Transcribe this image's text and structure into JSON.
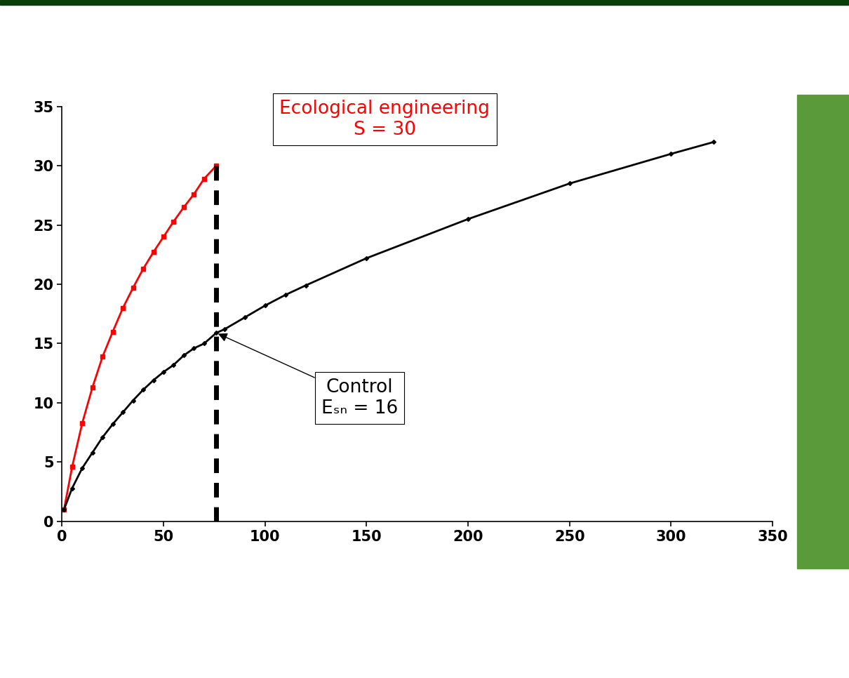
{
  "chart_data": {
    "type": "line",
    "series": [
      {
        "name": "Ecological engineering",
        "annotation": "S = 30",
        "color": "#ff0000",
        "marker": "square",
        "line_style": "solid",
        "x": [
          1,
          5,
          10,
          15,
          20,
          25,
          30,
          35,
          40,
          45,
          50,
          55,
          60,
          65,
          70,
          76
        ],
        "values": [
          1,
          4.6,
          8.3,
          11.3,
          13.9,
          16,
          18,
          19.7,
          21.3,
          22.7,
          24,
          25.3,
          26.5,
          27.6,
          28.9,
          30
        ]
      },
      {
        "name": "Control",
        "annotation": "Eₛₙ = 16",
        "color": "#000000",
        "marker": "diamond",
        "line_style": "solid",
        "x": [
          1,
          5,
          10,
          15,
          20,
          25,
          30,
          35,
          40,
          45,
          50,
          55,
          60,
          65,
          70,
          76,
          80,
          90,
          100,
          110,
          120,
          150,
          200,
          250,
          300,
          321
        ],
        "values": [
          1,
          2.8,
          4.5,
          5.8,
          7.1,
          8.2,
          9.2,
          10.2,
          11.1,
          11.9,
          12.6,
          13.2,
          14,
          14.6,
          15,
          15.9,
          16.2,
          17.2,
          18.2,
          19.1,
          19.9,
          22.2,
          25.5,
          28.5,
          31,
          32
        ]
      }
    ],
    "xlim": [
      0,
      350
    ],
    "xticks": [
      0,
      50,
      100,
      150,
      200,
      250,
      300,
      350
    ],
    "ylim": [
      0,
      35
    ],
    "yticks": [
      0,
      5,
      10,
      15,
      20,
      25,
      30,
      35
    ],
    "grid": false
  }
}
